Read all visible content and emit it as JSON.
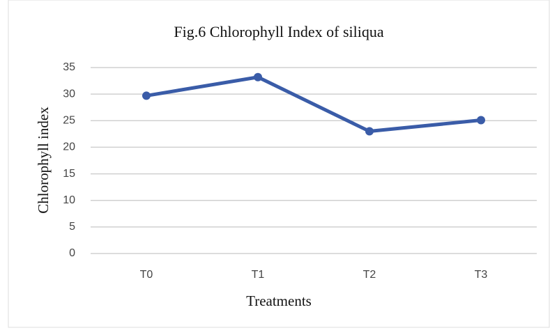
{
  "chart_data": {
    "type": "line",
    "title": "Fig.6 Chlorophyll Index of siliqua",
    "xlabel": "Treatments",
    "ylabel": "Chlorophyll index",
    "categories": [
      "T0",
      "T1",
      "T2",
      "T3"
    ],
    "series": [
      {
        "name": "Chlorophyll index",
        "color": "#3a5ca8",
        "values": [
          29.7,
          33.2,
          23.0,
          25.1
        ]
      }
    ],
    "ylim": [
      0,
      35
    ],
    "yticks": [
      0,
      5,
      10,
      15,
      20,
      25,
      30,
      35
    ],
    "grid": true
  }
}
